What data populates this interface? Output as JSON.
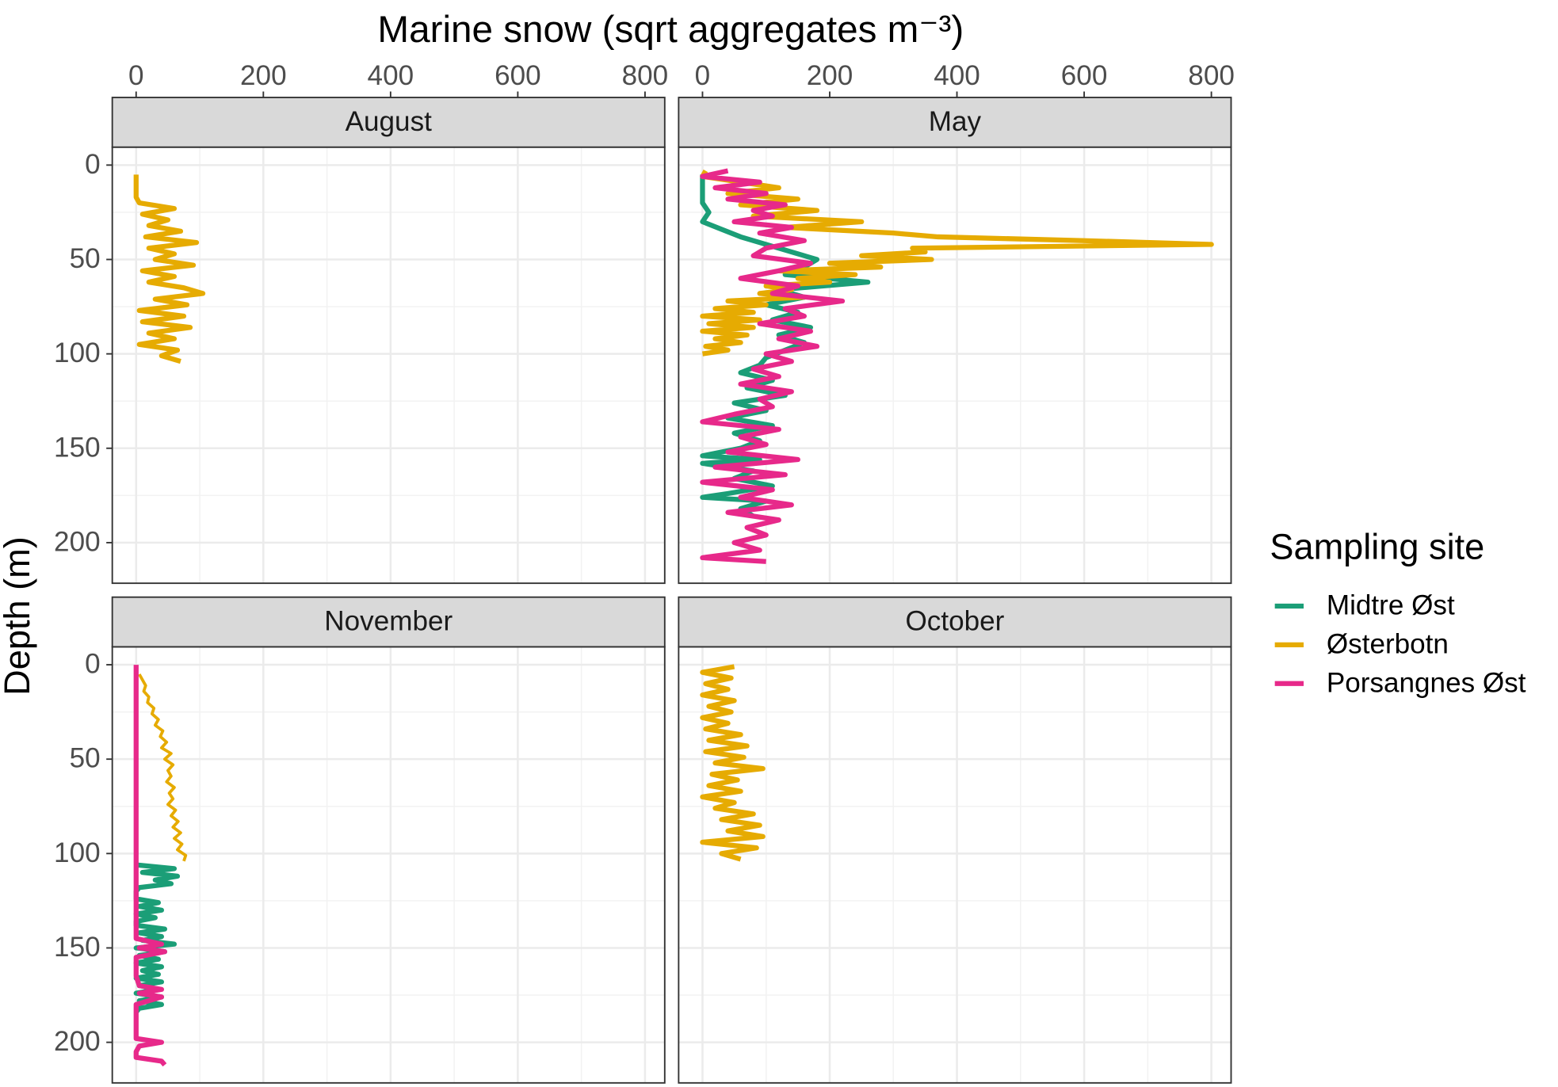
{
  "chart_data": {
    "type": "line",
    "x_label": "Marine snow (sqrt aggregates m⁻³)",
    "y_label": "Depth (m)",
    "legend_title": "Sampling site",
    "legend_position": "right",
    "grid": true,
    "xlim": [
      -37.5,
      831
    ],
    "xticks": [
      0,
      200,
      400,
      600,
      800
    ],
    "x_minor_ticks": [
      100,
      300,
      500,
      700
    ],
    "ylim": [
      -9.5,
      221.5
    ],
    "y_reversed": true,
    "yticks": [
      0,
      50,
      100,
      150,
      200
    ],
    "y_minor_ticks": [
      25,
      75,
      125,
      175
    ],
    "facets": [
      {
        "label": "August",
        "series": [
          {
            "name": "Østerbotn",
            "color": "#E6AB02",
            "line_width": 5,
            "depth": [
              5,
              8,
              11,
              14,
              17,
              20,
              23,
              26,
              29,
              32,
              35,
              38,
              41,
              44,
              47,
              50,
              53,
              56,
              59,
              62,
              65,
              68,
              71,
              74,
              77,
              80,
              83,
              86,
              89,
              92,
              95,
              98,
              101,
              104
            ],
            "values": [
              0,
              0,
              0,
              0,
              0,
              5,
              60,
              10,
              50,
              20,
              70,
              15,
              95,
              20,
              60,
              30,
              90,
              10,
              60,
              20,
              75,
              105,
              30,
              80,
              5,
              75,
              10,
              85,
              20,
              60,
              5,
              65,
              40,
              70
            ]
          }
        ]
      },
      {
        "label": "May",
        "series": [
          {
            "name": "Midtre Øst",
            "color": "#1B9E77",
            "line_width": 5,
            "depth": [
              5,
              10,
              15,
              20,
              25,
              30,
              34,
              38,
              42,
              46,
              50,
              54,
              58,
              62,
              66,
              70,
              74,
              78,
              82,
              86,
              90,
              94,
              98,
              102,
              106,
              110,
              114,
              118,
              122,
              126,
              130,
              134,
              138,
              142,
              146,
              150,
              154,
              156,
              158,
              162,
              166,
              170,
              174,
              176,
              178,
              182,
              186
            ],
            "values": [
              0,
              0,
              0,
              0,
              10,
              0,
              30,
              60,
              100,
              140,
              180,
              160,
              130,
              260,
              120,
              160,
              100,
              150,
              110,
              170,
              120,
              160,
              130,
              100,
              90,
              60,
              110,
              70,
              130,
              50,
              100,
              40,
              110,
              50,
              90,
              60,
              0,
              90,
              0,
              80,
              50,
              110,
              40,
              0,
              100,
              60,
              80
            ]
          },
          {
            "name": "Østerbotn",
            "color": "#E6AB02",
            "line_width": 5,
            "depth": [
              3,
              6,
              9,
              12,
              15,
              18,
              21,
              24,
              27,
              30,
              33,
              36,
              38,
              40,
              42,
              44,
              46,
              48,
              50,
              52,
              54,
              56,
              58,
              60,
              62,
              64,
              66,
              68,
              70,
              72,
              74,
              76,
              78,
              80,
              82,
              84,
              86,
              88,
              90,
              92,
              94,
              96,
              98,
              100
            ],
            "values": [
              5,
              0,
              60,
              120,
              40,
              150,
              60,
              180,
              80,
              250,
              130,
              300,
              370,
              600,
              800,
              330,
              350,
              250,
              360,
              200,
              280,
              120,
              240,
              150,
              200,
              100,
              140,
              90,
              160,
              40,
              100,
              20,
              80,
              0,
              90,
              10,
              80,
              0,
              70,
              20,
              60,
              5,
              40,
              0
            ]
          },
          {
            "name": "Porsangnes Øst",
            "color": "#E7298A",
            "line_width": 5,
            "depth": [
              3,
              6,
              9,
              12,
              15,
              18,
              21,
              24,
              27,
              30,
              33,
              36,
              40,
              44,
              48,
              52,
              56,
              60,
              64,
              68,
              72,
              76,
              80,
              84,
              88,
              92,
              96,
              100,
              104,
              108,
              112,
              116,
              120,
              124,
              128,
              132,
              136,
              140,
              144,
              148,
              152,
              156,
              160,
              164,
              168,
              172,
              176,
              180,
              184,
              188,
              192,
              196,
              200,
              204,
              208,
              210
            ],
            "values": [
              40,
              0,
              90,
              20,
              100,
              40,
              130,
              80,
              110,
              50,
              140,
              90,
              160,
              100,
              80,
              170,
              120,
              60,
              150,
              110,
              220,
              130,
              160,
              90,
              170,
              120,
              180,
              100,
              140,
              80,
              120,
              60,
              140,
              90,
              110,
              50,
              0,
              120,
              60,
              100,
              40,
              150,
              20,
              130,
              0,
              110,
              60,
              140,
              40,
              120,
              70,
              100,
              50,
              90,
              0,
              100
            ]
          }
        ]
      },
      {
        "label": "November",
        "series": [
          {
            "name": "Midtre Øst",
            "color": "#1B9E77",
            "line_width": 5,
            "depth": [
              106,
              108,
              110,
              112,
              114,
              116,
              118,
              120,
              122,
              124,
              126,
              128,
              130,
              132,
              134,
              136,
              138,
              140,
              142,
              144,
              146,
              148,
              150,
              152,
              154,
              156,
              158,
              160,
              162,
              164,
              166,
              168,
              170,
              172,
              174,
              176,
              178,
              180,
              182,
              184
            ],
            "values": [
              0,
              60,
              10,
              65,
              30,
              55,
              5,
              0,
              0,
              0,
              35,
              5,
              40,
              0,
              30,
              0,
              0,
              45,
              5,
              40,
              10,
              60,
              0,
              45,
              5,
              35,
              0,
              40,
              10,
              35,
              0,
              40,
              5,
              35,
              0,
              40,
              5,
              40,
              5,
              0
            ]
          },
          {
            "name": "Østerbotn",
            "color": "#E6AB02",
            "line_width": 3,
            "depth": [
              5,
              8,
              11,
              14,
              17,
              20,
              23,
              26,
              29,
              32,
              35,
              38,
              41,
              44,
              47,
              50,
              53,
              56,
              59,
              62,
              65,
              68,
              71,
              74,
              77,
              80,
              83,
              86,
              89,
              92,
              95,
              98,
              101,
              104
            ],
            "values": [
              5,
              10,
              15,
              12,
              20,
              18,
              28,
              25,
              35,
              30,
              42,
              38,
              48,
              40,
              55,
              45,
              58,
              50,
              55,
              48,
              60,
              52,
              58,
              50,
              62,
              55,
              66,
              58,
              70,
              60,
              72,
              65,
              78,
              75
            ]
          },
          {
            "name": "Porsangnes Øst",
            "color": "#E7298A",
            "line_width": 5,
            "depth": [
              0,
              20,
              40,
              60,
              80,
              100,
              120,
              140,
              145,
              148,
              150,
              152,
              155,
              160,
              165,
              170,
              172,
              174,
              176,
              180,
              190,
              198,
              200,
              202,
              205,
              208,
              210,
              212
            ],
            "values": [
              0,
              0,
              0,
              0,
              0,
              0,
              0,
              0,
              0,
              40,
              5,
              45,
              0,
              0,
              0,
              5,
              40,
              5,
              40,
              0,
              0,
              0,
              40,
              5,
              0,
              0,
              40,
              45
            ]
          }
        ]
      },
      {
        "label": "October",
        "series": [
          {
            "name": "Østerbotn",
            "color": "#E6AB02",
            "line_width": 5,
            "depth": [
              1,
              4,
              7,
              10,
              13,
              16,
              19,
              22,
              25,
              28,
              31,
              34,
              37,
              40,
              43,
              46,
              49,
              52,
              55,
              58,
              61,
              64,
              67,
              70,
              73,
              76,
              79,
              82,
              85,
              88,
              91,
              94,
              97,
              100,
              103
            ],
            "values": [
              50,
              0,
              45,
              5,
              40,
              0,
              50,
              10,
              45,
              0,
              40,
              5,
              60,
              10,
              70,
              5,
              65,
              20,
              95,
              15,
              55,
              10,
              60,
              0,
              50,
              20,
              80,
              30,
              90,
              40,
              95,
              0,
              85,
              30,
              60
            ]
          }
        ]
      }
    ]
  }
}
